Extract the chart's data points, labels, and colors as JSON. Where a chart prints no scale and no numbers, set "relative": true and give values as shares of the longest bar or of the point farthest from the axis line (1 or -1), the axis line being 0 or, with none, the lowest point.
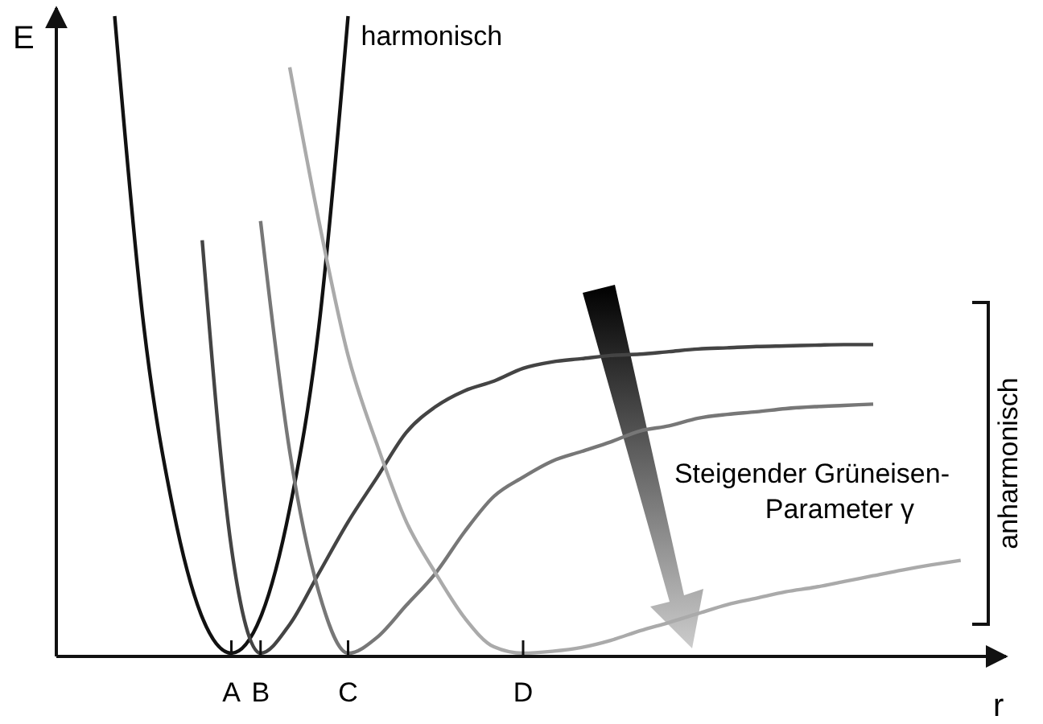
{
  "chart_data": {
    "type": "line",
    "relative": true,
    "xlabel": "r",
    "ylabel": "E",
    "categories": [
      null,
      null,
      null,
      null,
      null,
      null,
      "A",
      "B",
      null,
      null,
      "C",
      null,
      null,
      null,
      null,
      null,
      "D",
      null,
      null,
      null,
      null,
      null,
      null,
      null,
      null,
      null,
      null,
      null,
      null,
      null,
      null,
      null,
      null
    ],
    "tick_labels": "x",
    "grid": false,
    "marker": "none",
    "line_style": "solid",
    "annotations": [
      "harmonisch",
      "Steigender Grüneisen-Parameter γ",
      "anharmonisch"
    ],
    "series": [
      {
        "color": "#111111",
        "values": [
          null,
          null,
          1.0,
          0.515,
          0.231,
          0.061,
          0.005,
          0.061,
          0.231,
          0.515,
          1.0,
          null,
          null,
          null,
          null,
          null,
          null,
          null,
          null,
          null,
          null,
          null,
          null,
          null,
          null,
          null,
          null,
          null,
          null,
          null,
          null,
          null,
          null
        ]
      },
      {
        "color": "#444444",
        "values": [
          null,
          null,
          null,
          null,
          null,
          0.65,
          0.17,
          0.005,
          0.05,
          0.13,
          0.21,
          0.28,
          0.35,
          0.39,
          0.415,
          0.43,
          0.45,
          0.46,
          0.465,
          0.47,
          0.472,
          0.476,
          0.48,
          0.482,
          0.484,
          0.485,
          0.486,
          0.487,
          0.487,
          null,
          null,
          null,
          null
        ]
      },
      {
        "color": "#777777",
        "values": [
          null,
          null,
          null,
          null,
          null,
          null,
          null,
          0.68,
          0.32,
          0.1,
          0.005,
          0.03,
          0.08,
          0.13,
          0.195,
          0.25,
          0.28,
          0.305,
          0.32,
          0.335,
          0.352,
          0.36,
          0.372,
          0.378,
          0.382,
          0.387,
          0.39,
          0.392,
          0.394,
          null,
          null,
          null,
          null
        ]
      },
      {
        "color": "#aaaaaa",
        "values": [
          null,
          null,
          null,
          null,
          null,
          null,
          null,
          null,
          0.92,
          0.68,
          0.47,
          0.33,
          0.21,
          0.13,
          0.06,
          0.015,
          0.005,
          0.008,
          0.014,
          0.025,
          0.04,
          0.053,
          0.067,
          0.081,
          0.091,
          0.101,
          0.108,
          0.117,
          0.126,
          0.135,
          0.143,
          0.15,
          null
        ]
      }
    ]
  }
}
